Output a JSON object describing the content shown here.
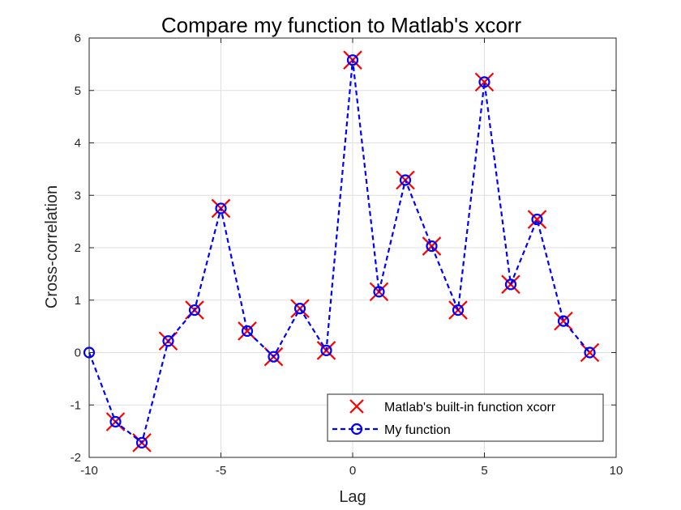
{
  "chart_data": {
    "type": "line",
    "title": "Compare my function to Matlab's xcorr",
    "xlabel": "Lag",
    "ylabel": "Cross-correlation",
    "xlim": [
      -10,
      10
    ],
    "ylim": [
      -2,
      6
    ],
    "xticks": [
      -10,
      -5,
      0,
      5,
      10
    ],
    "yticks": [
      -2,
      -1,
      0,
      1,
      2,
      3,
      4,
      5,
      6
    ],
    "xtick_labels": [
      "-10",
      "-5",
      "0",
      "5",
      "10"
    ],
    "ytick_labels": [
      "-2",
      "-1",
      "0",
      "1",
      "2",
      "3",
      "4",
      "5",
      "6"
    ],
    "grid": true,
    "legend_position": "bottom-right",
    "series": [
      {
        "name": "Matlab's built-in function xcorr",
        "marker": "x",
        "line": "none",
        "color": "#ff0000",
        "x": [
          -9,
          -8,
          -7,
          -6,
          -5,
          -4,
          -3,
          -2,
          -1,
          0,
          1,
          2,
          3,
          4,
          5,
          6,
          7,
          8,
          9
        ],
        "y": [
          -1.32,
          -1.72,
          0.22,
          0.81,
          2.75,
          0.41,
          -0.08,
          0.84,
          0.04,
          5.58,
          1.16,
          3.29,
          2.03,
          0.81,
          5.16,
          1.3,
          2.54,
          0.6,
          0.0
        ]
      },
      {
        "name": "My function",
        "marker": "o",
        "line": "dashed",
        "color": "#0000ff",
        "x": [
          -10,
          -9,
          -8,
          -7,
          -6,
          -5,
          -4,
          -3,
          -2,
          -1,
          0,
          1,
          2,
          3,
          4,
          5,
          6,
          7,
          8,
          9
        ],
        "y": [
          0.0,
          -1.32,
          -1.72,
          0.22,
          0.81,
          2.75,
          0.41,
          -0.08,
          0.84,
          0.04,
          5.58,
          1.16,
          3.29,
          2.03,
          0.81,
          5.16,
          1.3,
          2.54,
          0.6,
          0.0
        ]
      }
    ]
  }
}
